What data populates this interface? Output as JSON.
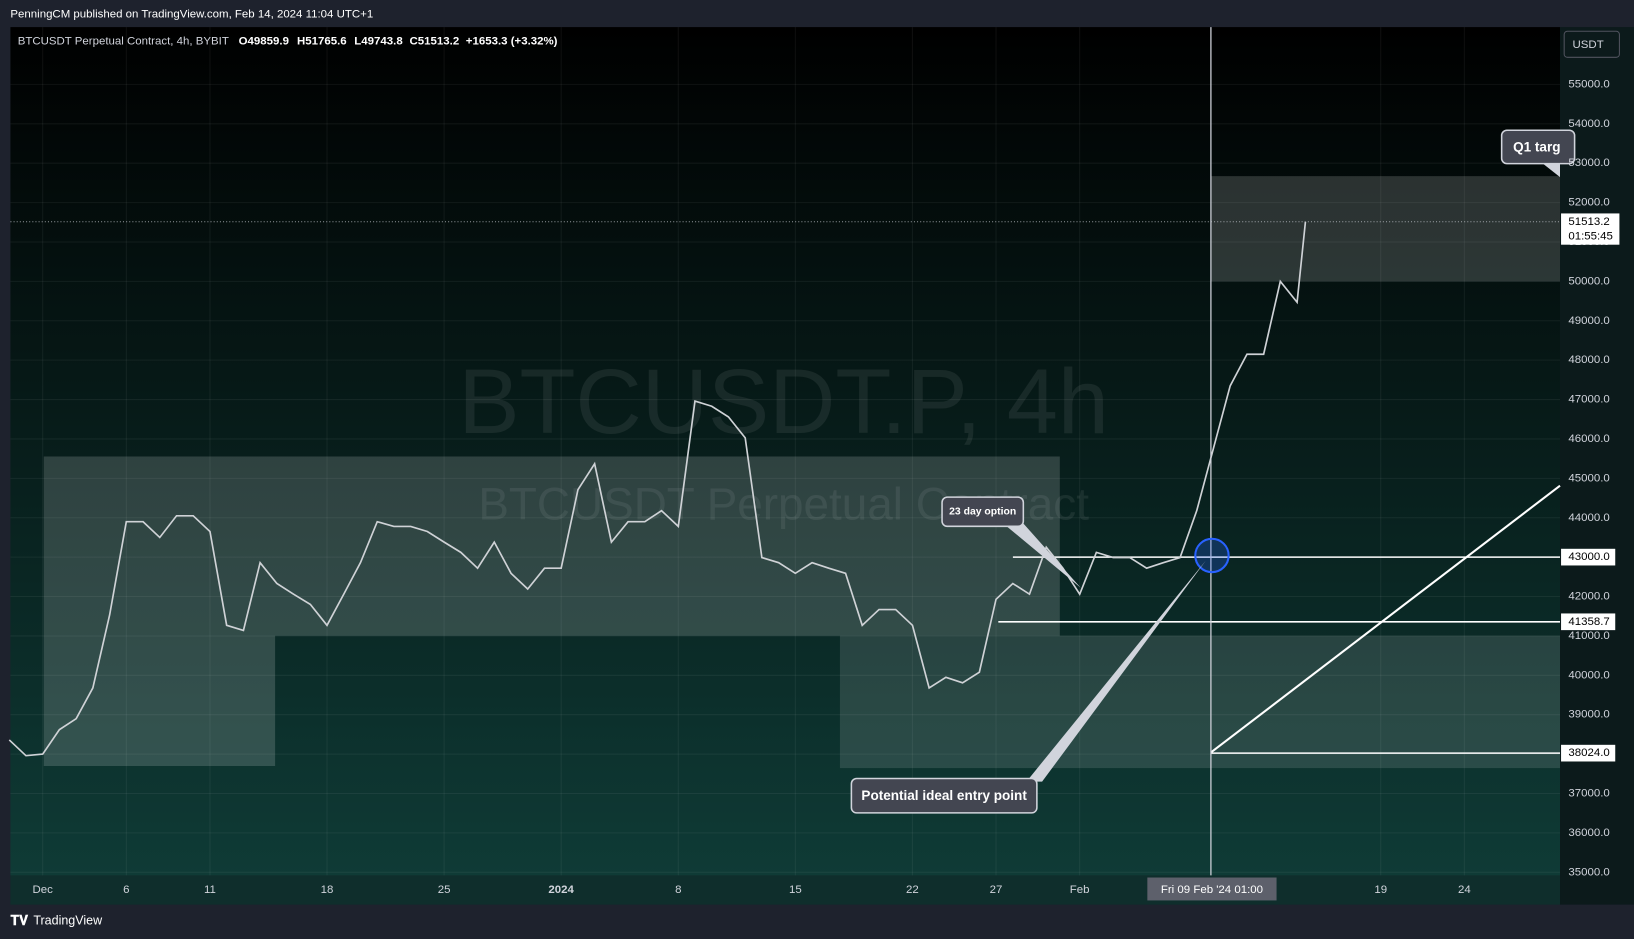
{
  "header": {
    "published": "PenningCM published on TradingView.com, Feb 14, 2024 11:04 UTC+1",
    "symbol": "BTCUSDT Perpetual Contract, 4h, BYBIT",
    "open": "O49859.9",
    "high": "H51765.6",
    "low": "L49743.8",
    "close": "C51513.2",
    "change": "+1653.3 (+3.32%)"
  },
  "chart_data": {
    "type": "line",
    "watermark": "BTCUSDT.P, 4h",
    "watermark_sub": "BTCUSDT Perpetual Contract",
    "currency": "USDT",
    "color": "#cfd2d6",
    "x": [
      -2,
      -1,
      0,
      1,
      2,
      3,
      4,
      5,
      6,
      7,
      8,
      9,
      10,
      11,
      12,
      13,
      14,
      15,
      16,
      17,
      18,
      19,
      20,
      21,
      22,
      23,
      24,
      25,
      26,
      27,
      28,
      29,
      30,
      31,
      32,
      33,
      34,
      35,
      36,
      37,
      38,
      39,
      40,
      41,
      42,
      43,
      44,
      45,
      46,
      47,
      48,
      49,
      50,
      51,
      52,
      53,
      54,
      55,
      56,
      57,
      58,
      59,
      60,
      61,
      62,
      63,
      64,
      65,
      66,
      67,
      68,
      69,
      70,
      71,
      72,
      73,
      74,
      75,
      75.5
    ],
    "values": [
      38360,
      37960,
      38000,
      38620,
      38900,
      39680,
      41530,
      43900,
      43900,
      43500,
      44050,
      44050,
      43650,
      41270,
      41140,
      42860,
      42330,
      42060,
      41800,
      41270,
      42060,
      42860,
      43900,
      43780,
      43780,
      43650,
      43380,
      43120,
      42720,
      43380,
      42590,
      42190,
      42720,
      42720,
      44710,
      45370,
      43380,
      43900,
      43900,
      44180,
      43780,
      46960,
      46830,
      46560,
      46030,
      42990,
      42860,
      42590,
      42860,
      42720,
      42590,
      41270,
      41670,
      41670,
      41270,
      39680,
      39950,
      39810,
      40080,
      41930,
      42330,
      42060,
      43250,
      42720,
      42060,
      43120,
      42990,
      42990,
      42720,
      42860,
      42990,
      44180,
      45770,
      47350,
      48150,
      48150,
      50000,
      49470,
      51513.2
    ],
    "xlim": [
      -1.93,
      90.72
    ],
    "ylim": [
      34920,
      56455
    ],
    "xticks": [
      {
        "value": 0,
        "label": "Dec"
      },
      {
        "value": 5,
        "label": "6"
      },
      {
        "value": 10,
        "label": "11"
      },
      {
        "value": 17,
        "label": "18"
      },
      {
        "value": 24,
        "label": "25"
      },
      {
        "value": 31,
        "label": "2024"
      },
      {
        "value": 38,
        "label": "8"
      },
      {
        "value": 45,
        "label": "15"
      },
      {
        "value": 52,
        "label": "22"
      },
      {
        "value": 57,
        "label": "27"
      },
      {
        "value": 62,
        "label": "Feb"
      },
      {
        "value": 80,
        "label": "19"
      },
      {
        "value": 85,
        "label": "24"
      }
    ],
    "yticks": [
      {
        "value": 35000,
        "label": "35000.0"
      },
      {
        "value": 36000,
        "label": "36000.0"
      },
      {
        "value": 37000,
        "label": "37000.0"
      },
      {
        "value": 38000,
        "label": "38000.0"
      },
      {
        "value": 39000,
        "label": "39000.0"
      },
      {
        "value": 40000,
        "label": "40000.0"
      },
      {
        "value": 41000,
        "label": "41000.0"
      },
      {
        "value": 42000,
        "label": "42000.0"
      },
      {
        "value": 43000,
        "label": "43000.0"
      },
      {
        "value": 44000,
        "label": "44000.0"
      },
      {
        "value": 45000,
        "label": "45000.0"
      },
      {
        "value": 46000,
        "label": "46000.0"
      },
      {
        "value": 47000,
        "label": "47000.0"
      },
      {
        "value": 48000,
        "label": "48000.0"
      },
      {
        "value": 49000,
        "label": "49000.0"
      },
      {
        "value": 50000,
        "label": "50000.0"
      },
      {
        "value": 51000,
        "label": "51000.0"
      },
      {
        "value": 52000,
        "label": "52000.0"
      },
      {
        "value": 53000,
        "label": "53000.0"
      },
      {
        "value": 54000,
        "label": "54000.0"
      },
      {
        "value": 55000,
        "label": "55000.0"
      }
    ],
    "grid": true,
    "levels": [
      {
        "value": 43000,
        "label": "43000.0"
      },
      {
        "value": 41358.7,
        "label": "41358.7"
      },
      {
        "value": 38024,
        "label": "38024.0"
      }
    ],
    "last_price": 51513.2,
    "countdown": "01:55:45",
    "crosshair_label": "Fri 09 Feb '24  01:00",
    "annotations": [
      "23 day option",
      "Potential ideal entry point",
      "Q1 targ"
    ]
  },
  "footer": "TradingView"
}
